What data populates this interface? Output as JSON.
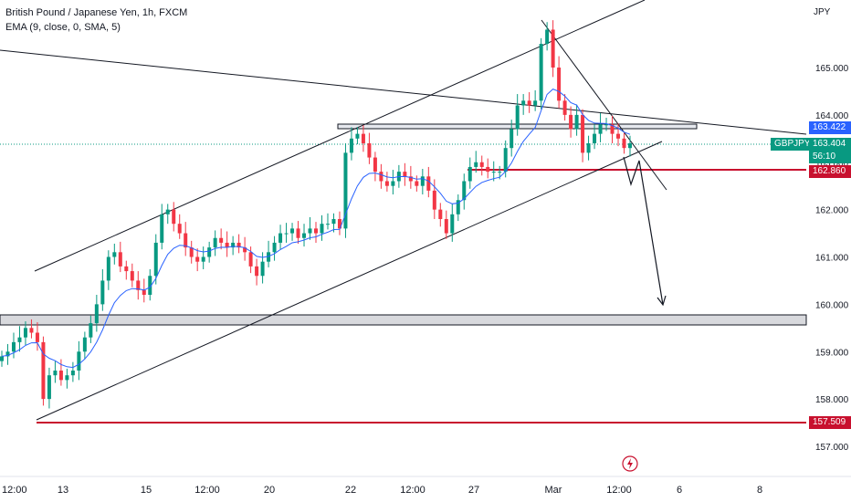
{
  "legend": {
    "title": "British Pound / Japanese Yen, 1h, FXCM",
    "indicator": "EMA (9, close, 0, SMA, 5)"
  },
  "currency": "JPY",
  "price_badges": {
    "upper": {
      "value": "163.422",
      "color": "#2962ff"
    },
    "current_symbol": "GBPJPY",
    "current": {
      "value": "163.404",
      "color": "#089981"
    },
    "countdown": "56:10",
    "support": {
      "value": "162.860",
      "color": "#c8102e"
    },
    "low": {
      "value": "157.509",
      "color": "#c8102e"
    }
  },
  "chart_data": {
    "type": "candlestick",
    "y_ticks": [
      "165.000",
      "164.000",
      "163.000",
      "162.000",
      "161.000",
      "160.000",
      "159.000",
      "158.000",
      "157.000"
    ],
    "y_tick_values": [
      165,
      164,
      163,
      162,
      161,
      160,
      159,
      158,
      157
    ],
    "x_ticks": [
      "12:00",
      "13",
      "15",
      "12:00",
      "20",
      "22",
      "12:00",
      "27",
      "Mar",
      "12:00",
      "6",
      "8"
    ],
    "ylim": [
      156.4,
      166.3
    ],
    "series_close": [
      158.9,
      159.0,
      159.2,
      159.3,
      159.5,
      159.4,
      159.2,
      158.0,
      158.5,
      158.6,
      158.4,
      158.5,
      158.6,
      159.0,
      159.3,
      159.6,
      160.0,
      160.5,
      161.0,
      161.1,
      160.8,
      160.7,
      160.5,
      160.3,
      160.2,
      160.6,
      161.3,
      161.9,
      162.0,
      161.7,
      161.5,
      161.2,
      161.0,
      160.9,
      161.0,
      161.2,
      161.4,
      161.3,
      161.2,
      161.3,
      161.2,
      161.1,
      160.8,
      160.6,
      160.9,
      161.1,
      161.3,
      161.5,
      161.5,
      161.6,
      161.4,
      161.5,
      161.6,
      161.5,
      161.7,
      161.7,
      161.8,
      161.6,
      163.2,
      163.5,
      163.6,
      163.4,
      163.1,
      162.8,
      162.6,
      162.5,
      162.6,
      162.8,
      162.7,
      162.6,
      162.5,
      162.7,
      162.4,
      162.0,
      161.8,
      161.5,
      161.9,
      162.2,
      162.6,
      162.9,
      163.0,
      162.9,
      162.8,
      162.8,
      162.8,
      163.3,
      163.7,
      164.2,
      164.3,
      164.2,
      164.3,
      165.5,
      165.8,
      165.0,
      164.3,
      164.0,
      163.7,
      164.0,
      163.2,
      163.4,
      163.6,
      163.8,
      163.8,
      163.6,
      163.5,
      163.3,
      163.4
    ],
    "annotations": {
      "resistance_zone": [
        163.7,
        163.78
      ],
      "support_zone": [
        159.65,
        159.85
      ],
      "support_line": 162.86,
      "low_line": 157.509
    }
  }
}
